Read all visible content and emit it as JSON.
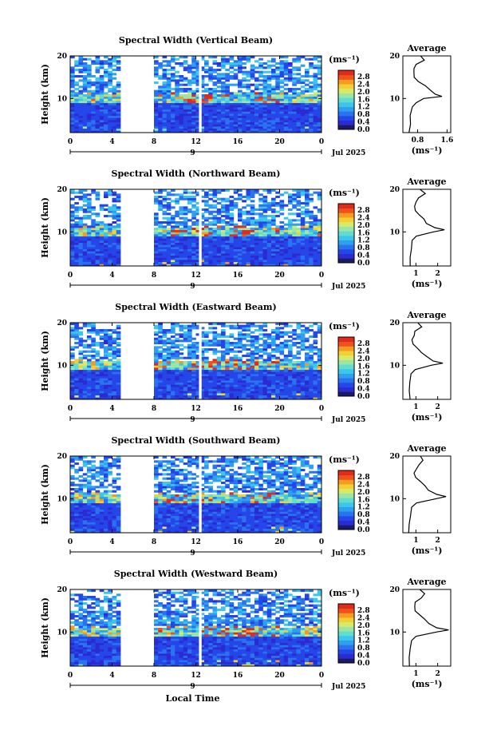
{
  "figure": {
    "xlabel": "Local Time",
    "date_label": "Jul 2025",
    "day_label": "9",
    "avg_title": "Average",
    "cbar_unit": "(ms⁻¹)",
    "avg_xlabel": "(ms⁻¹)",
    "ylabel": "Height (km)"
  },
  "colorbar": {
    "tick_labels": [
      "2.8",
      "2.4",
      "2.0",
      "1.6",
      "1.2",
      "0.8",
      "0.4",
      "0.0"
    ],
    "colors": [
      "#1a1a66",
      "#2b2bd1",
      "#2546e8",
      "#2a73ee",
      "#2f9ff0",
      "#3cc6ec",
      "#63dcd0",
      "#9be6a4",
      "#d7ea6a",
      "#f4cf34",
      "#f59a22",
      "#f0521c",
      "#e02a1c"
    ]
  },
  "chart_data": [
    {
      "type": "heatmap",
      "title": "Spectral Width (Vertical Beam)",
      "x_ticks": [
        "0",
        "4",
        "8",
        "12",
        "16",
        "20",
        "0"
      ],
      "xlim": [
        0,
        24
      ],
      "ylim": [
        2,
        20
      ],
      "y_ticks": [
        "20",
        "10"
      ],
      "gap_hours": [
        [
          5.0,
          7.9
        ],
        [
          12.3,
          12.55
        ]
      ],
      "avg_profile": {
        "x_ticks": [
          "0.8",
          "1.6"
        ],
        "xlim": [
          0.4,
          1.7
        ],
        "height_km": [
          2,
          4,
          6,
          8,
          9,
          10,
          10.5,
          11,
          12,
          13,
          14,
          15,
          16,
          17,
          18,
          19,
          20
        ],
        "width_ms": [
          0.55,
          0.58,
          0.6,
          0.65,
          0.75,
          1.0,
          1.5,
          1.3,
          1.1,
          1.0,
          0.8,
          0.75,
          0.7,
          0.72,
          0.8,
          0.95,
          0.9
        ]
      }
    },
    {
      "type": "heatmap",
      "title": "Spectral Width (Northward Beam)",
      "x_ticks": [
        "0",
        "4",
        "8",
        "12",
        "16",
        "20",
        "0"
      ],
      "xlim": [
        0,
        24
      ],
      "ylim": [
        2,
        20
      ],
      "y_ticks": [
        "20",
        "10"
      ],
      "gap_hours": [
        [
          5.0,
          7.9
        ],
        [
          12.3,
          12.55
        ]
      ],
      "avg_profile": {
        "x_ticks": [
          "1",
          "2"
        ],
        "xlim": [
          0.4,
          2.6
        ],
        "height_km": [
          2,
          4,
          6,
          8,
          9,
          10,
          10.5,
          11,
          12,
          13,
          14,
          15,
          16,
          17,
          18,
          19,
          20
        ],
        "width_ms": [
          0.7,
          0.72,
          0.75,
          0.8,
          1.0,
          1.8,
          2.3,
          1.9,
          1.5,
          1.4,
          1.2,
          1.0,
          0.9,
          1.0,
          1.1,
          1.4,
          1.2
        ]
      }
    },
    {
      "type": "heatmap",
      "title": "Spectral Width (Eastward Beam)",
      "x_ticks": [
        "0",
        "4",
        "8",
        "12",
        "16",
        "20",
        "0"
      ],
      "xlim": [
        0,
        24
      ],
      "ylim": [
        2,
        20
      ],
      "y_ticks": [
        "20",
        "10"
      ],
      "gap_hours": [
        [
          5.0,
          7.9
        ],
        [
          12.3,
          12.55
        ]
      ],
      "avg_profile": {
        "x_ticks": [
          "1",
          "2"
        ],
        "xlim": [
          0.4,
          2.6
        ],
        "height_km": [
          2,
          4,
          6,
          8,
          9,
          10,
          10.5,
          11,
          12,
          13,
          14,
          15,
          16,
          17,
          18,
          19,
          20
        ],
        "width_ms": [
          0.7,
          0.72,
          0.75,
          0.8,
          0.95,
          1.7,
          2.2,
          1.8,
          1.5,
          1.3,
          1.1,
          0.9,
          0.8,
          0.9,
          1.0,
          1.3,
          1.1
        ]
      }
    },
    {
      "type": "heatmap",
      "title": "Spectral Width (Southward Beam)",
      "x_ticks": [
        "0",
        "4",
        "8",
        "12",
        "16",
        "20",
        "0"
      ],
      "xlim": [
        0,
        24
      ],
      "ylim": [
        2,
        20
      ],
      "y_ticks": [
        "20",
        "10"
      ],
      "gap_hours": [
        [
          5.0,
          7.9
        ],
        [
          12.3,
          12.55
        ]
      ],
      "avg_profile": {
        "x_ticks": [
          "1",
          "2"
        ],
        "xlim": [
          0.4,
          2.6
        ],
        "height_km": [
          2,
          4,
          6,
          8,
          9,
          10,
          10.5,
          11,
          12,
          13,
          14,
          15,
          16,
          17,
          18,
          19,
          20
        ],
        "width_ms": [
          0.7,
          0.72,
          0.75,
          0.8,
          1.0,
          1.9,
          2.4,
          2.0,
          1.6,
          1.4,
          1.2,
          1.0,
          0.9,
          1.0,
          1.1,
          1.3,
          1.2
        ]
      }
    },
    {
      "type": "heatmap",
      "title": "Spectral Width (Westward Beam)",
      "x_ticks": [
        "0",
        "4",
        "8",
        "12",
        "16",
        "20",
        "0"
      ],
      "xlim": [
        0,
        24
      ],
      "ylim": [
        2,
        20
      ],
      "y_ticks": [
        "20",
        "10"
      ],
      "gap_hours": [
        [
          5.0,
          7.9
        ],
        [
          12.3,
          12.55
        ]
      ],
      "avg_profile": {
        "x_ticks": [
          "1",
          "2"
        ],
        "xlim": [
          0.4,
          2.6
        ],
        "height_km": [
          2,
          4,
          6,
          8,
          9,
          10,
          10.5,
          11,
          12,
          13,
          14,
          15,
          16,
          17,
          18,
          19,
          20
        ],
        "width_ms": [
          0.7,
          0.72,
          0.75,
          0.8,
          1.0,
          1.9,
          2.5,
          2.0,
          1.6,
          1.4,
          1.2,
          1.0,
          0.9,
          1.0,
          1.2,
          1.4,
          1.2
        ]
      }
    }
  ]
}
